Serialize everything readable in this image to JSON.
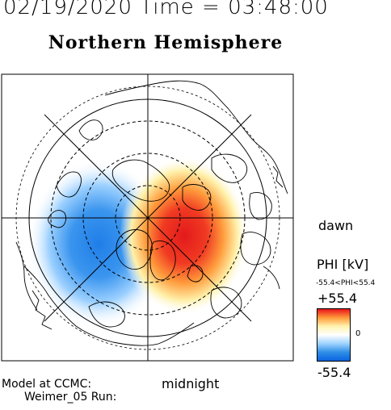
{
  "header": {
    "date_time": "02/19/2020 Time = 03:48:00",
    "title": "Northern Hemisphere"
  },
  "labels": {
    "dawn": "dawn",
    "midnight": "midnight",
    "model_line1": "Model at CCMC:",
    "model_line2": "Weimer_05 Run:"
  },
  "legend": {
    "title": "PHI [kV]",
    "range_text": "-55.4<PHI<55.4",
    "max": "+55.4",
    "zero": "0",
    "min": "-55.4",
    "colors": {
      "max": "#e8141c",
      "upper": "#ff9a3a",
      "mid_upper": "#fff3b0",
      "zero": "#ffffff",
      "mid_lower": "#9fd3ff",
      "lower": "#2f8fe6",
      "min": "#0a63e0"
    }
  },
  "map": {
    "potential_cells": [
      {
        "name": "dawn-positive-cell",
        "sign": "positive",
        "peak_kv": 55.4
      },
      {
        "name": "dusk-negative-cell",
        "sign": "negative",
        "peak_kv": -55.4
      }
    ],
    "latitude_circles": [
      "solid",
      "dashed",
      "solid",
      "dashed",
      "dashed",
      "dashed"
    ]
  }
}
